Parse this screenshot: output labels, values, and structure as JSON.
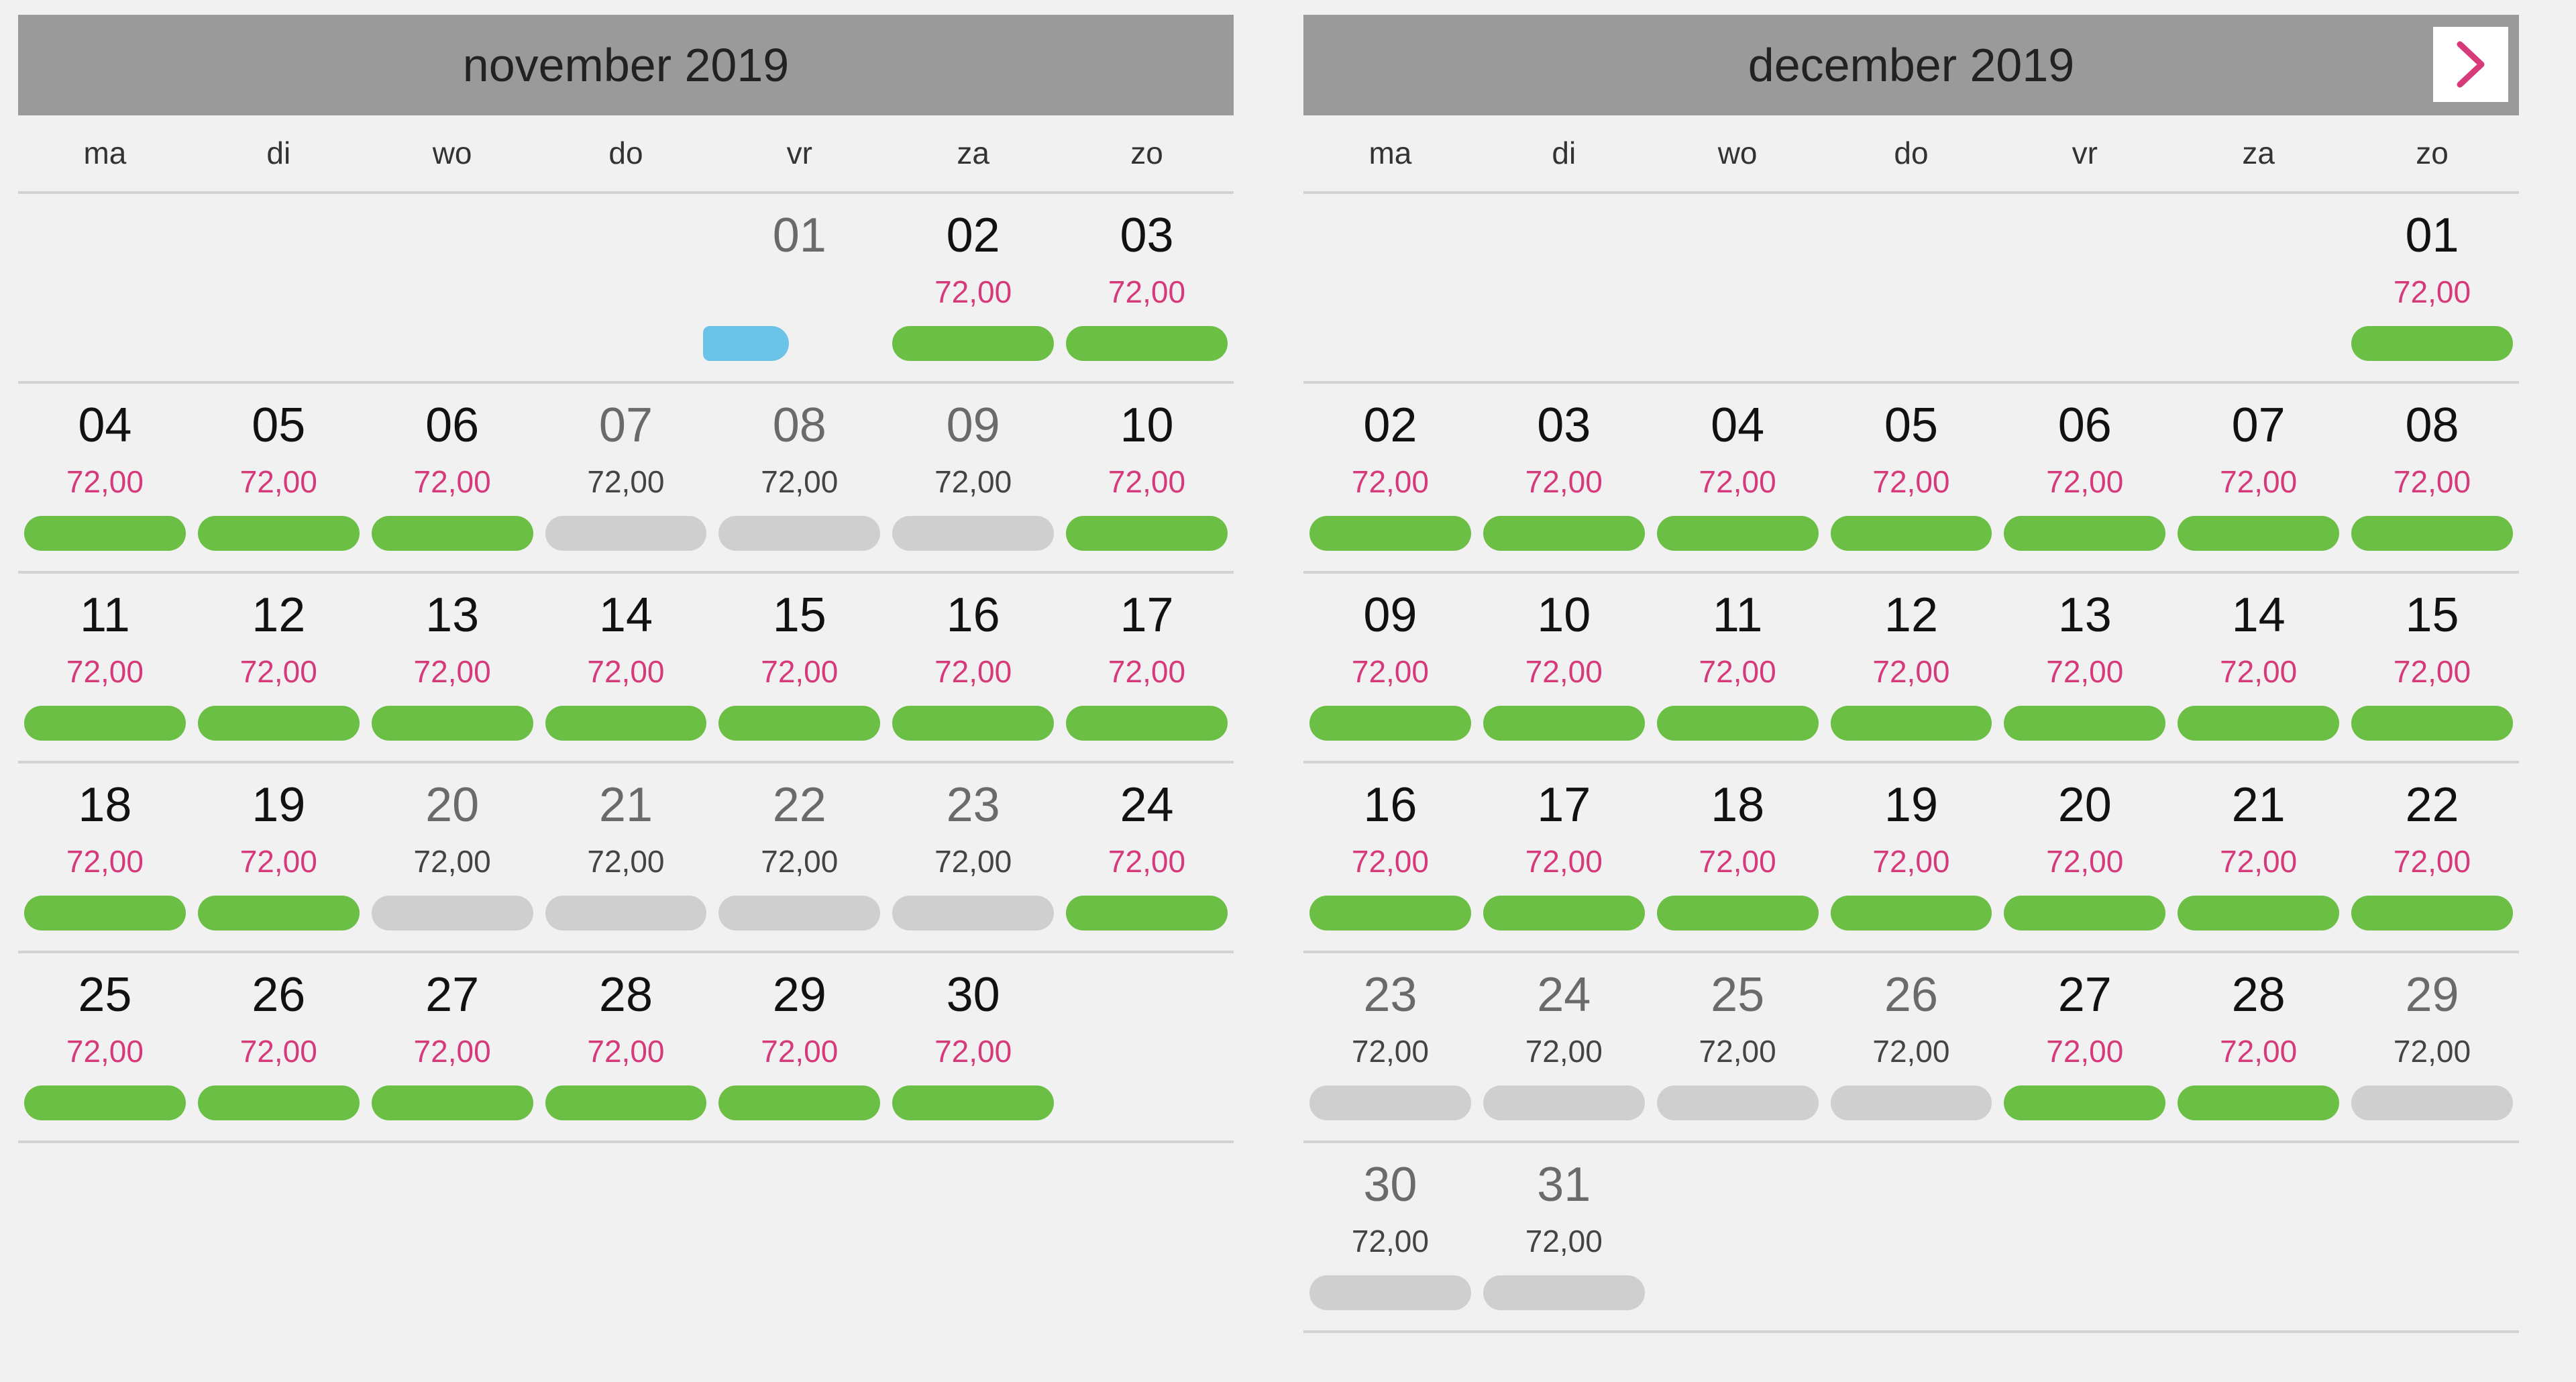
{
  "weekdays": [
    "ma",
    "di",
    "wo",
    "do",
    "vr",
    "za",
    "zo"
  ],
  "next_button": {
    "icon": "chevron-right-icon",
    "color": "#d63a7a"
  },
  "colors": {
    "available": "#6cbf45",
    "unavailable": "#cfcfcf",
    "today": "#6cc3e8",
    "price_available": "#d63a7a",
    "price_unavailable": "#444444",
    "header": "#9a9a9a"
  },
  "calendars": [
    {
      "title": "november 2019",
      "weeks": [
        [
          null,
          null,
          null,
          null,
          {
            "day": "01",
            "price": "",
            "status": "today"
          },
          {
            "day": "02",
            "price": "72,00",
            "status": "available"
          },
          {
            "day": "03",
            "price": "72,00",
            "status": "available"
          }
        ],
        [
          {
            "day": "04",
            "price": "72,00",
            "status": "available"
          },
          {
            "day": "05",
            "price": "72,00",
            "status": "available"
          },
          {
            "day": "06",
            "price": "72,00",
            "status": "available"
          },
          {
            "day": "07",
            "price": "72,00",
            "status": "unavailable"
          },
          {
            "day": "08",
            "price": "72,00",
            "status": "unavailable"
          },
          {
            "day": "09",
            "price": "72,00",
            "status": "unavailable"
          },
          {
            "day": "10",
            "price": "72,00",
            "status": "available"
          }
        ],
        [
          {
            "day": "11",
            "price": "72,00",
            "status": "available"
          },
          {
            "day": "12",
            "price": "72,00",
            "status": "available"
          },
          {
            "day": "13",
            "price": "72,00",
            "status": "available"
          },
          {
            "day": "14",
            "price": "72,00",
            "status": "available"
          },
          {
            "day": "15",
            "price": "72,00",
            "status": "available"
          },
          {
            "day": "16",
            "price": "72,00",
            "status": "available"
          },
          {
            "day": "17",
            "price": "72,00",
            "status": "available"
          }
        ],
        [
          {
            "day": "18",
            "price": "72,00",
            "status": "available"
          },
          {
            "day": "19",
            "price": "72,00",
            "status": "available"
          },
          {
            "day": "20",
            "price": "72,00",
            "status": "unavailable"
          },
          {
            "day": "21",
            "price": "72,00",
            "status": "unavailable"
          },
          {
            "day": "22",
            "price": "72,00",
            "status": "unavailable"
          },
          {
            "day": "23",
            "price": "72,00",
            "status": "unavailable"
          },
          {
            "day": "24",
            "price": "72,00",
            "status": "available"
          }
        ],
        [
          {
            "day": "25",
            "price": "72,00",
            "status": "available"
          },
          {
            "day": "26",
            "price": "72,00",
            "status": "available"
          },
          {
            "day": "27",
            "price": "72,00",
            "status": "available"
          },
          {
            "day": "28",
            "price": "72,00",
            "status": "available"
          },
          {
            "day": "29",
            "price": "72,00",
            "status": "available"
          },
          {
            "day": "30",
            "price": "72,00",
            "status": "available"
          },
          null
        ]
      ]
    },
    {
      "title": "december 2019",
      "weeks": [
        [
          null,
          null,
          null,
          null,
          null,
          null,
          {
            "day": "01",
            "price": "72,00",
            "status": "available"
          }
        ],
        [
          {
            "day": "02",
            "price": "72,00",
            "status": "available"
          },
          {
            "day": "03",
            "price": "72,00",
            "status": "available"
          },
          {
            "day": "04",
            "price": "72,00",
            "status": "available"
          },
          {
            "day": "05",
            "price": "72,00",
            "status": "available"
          },
          {
            "day": "06",
            "price": "72,00",
            "status": "available"
          },
          {
            "day": "07",
            "price": "72,00",
            "status": "available"
          },
          {
            "day": "08",
            "price": "72,00",
            "status": "available"
          }
        ],
        [
          {
            "day": "09",
            "price": "72,00",
            "status": "available"
          },
          {
            "day": "10",
            "price": "72,00",
            "status": "available"
          },
          {
            "day": "11",
            "price": "72,00",
            "status": "available"
          },
          {
            "day": "12",
            "price": "72,00",
            "status": "available"
          },
          {
            "day": "13",
            "price": "72,00",
            "status": "available"
          },
          {
            "day": "14",
            "price": "72,00",
            "status": "available"
          },
          {
            "day": "15",
            "price": "72,00",
            "status": "available"
          }
        ],
        [
          {
            "day": "16",
            "price": "72,00",
            "status": "available"
          },
          {
            "day": "17",
            "price": "72,00",
            "status": "available"
          },
          {
            "day": "18",
            "price": "72,00",
            "status": "available"
          },
          {
            "day": "19",
            "price": "72,00",
            "status": "available"
          },
          {
            "day": "20",
            "price": "72,00",
            "status": "available"
          },
          {
            "day": "21",
            "price": "72,00",
            "status": "available"
          },
          {
            "day": "22",
            "price": "72,00",
            "status": "available"
          }
        ],
        [
          {
            "day": "23",
            "price": "72,00",
            "status": "unavailable"
          },
          {
            "day": "24",
            "price": "72,00",
            "status": "unavailable"
          },
          {
            "day": "25",
            "price": "72,00",
            "status": "unavailable"
          },
          {
            "day": "26",
            "price": "72,00",
            "status": "unavailable"
          },
          {
            "day": "27",
            "price": "72,00",
            "status": "available"
          },
          {
            "day": "28",
            "price": "72,00",
            "status": "available"
          },
          {
            "day": "29",
            "price": "72,00",
            "status": "unavailable"
          }
        ],
        [
          {
            "day": "30",
            "price": "72,00",
            "status": "unavailable"
          },
          {
            "day": "31",
            "price": "72,00",
            "status": "unavailable"
          },
          null,
          null,
          null,
          null,
          null
        ]
      ]
    }
  ]
}
